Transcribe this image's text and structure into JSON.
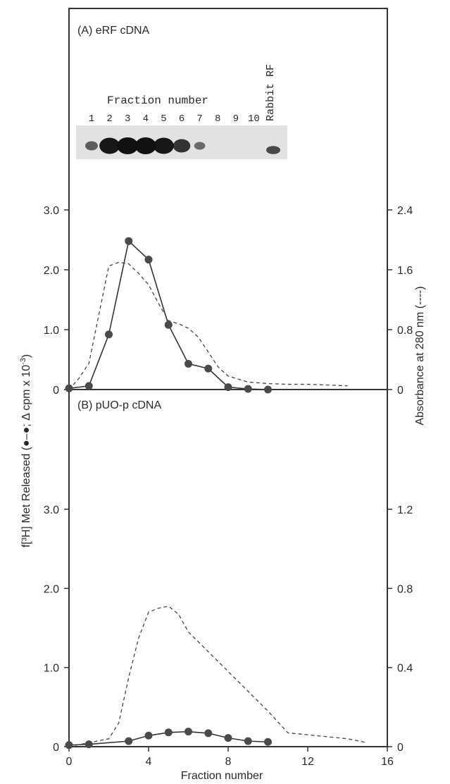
{
  "chart_data": [
    {
      "type": "line",
      "panel_label": "(A) eRF cDNA",
      "xlim": [
        0,
        16
      ],
      "ylim": [
        0,
        3.0
      ],
      "y2lim": [
        0,
        2.4
      ],
      "yticks": [
        "0",
        "1.0",
        "2.0",
        "3.0"
      ],
      "y2ticks": [
        "0",
        "0.8",
        "1.6",
        "2.4"
      ],
      "series": [
        {
          "axis": "left",
          "style": "solid-with-dots",
          "x": [
            0,
            1,
            2,
            3,
            4,
            5,
            6,
            7,
            8,
            9,
            10
          ],
          "values": [
            0.02,
            0.06,
            0.92,
            2.48,
            2.17,
            1.08,
            0.43,
            0.35,
            0.04,
            0.01,
            0.0
          ]
        },
        {
          "axis": "right",
          "style": "dashed",
          "x": [
            0,
            0.5,
            1,
            1.5,
            2,
            2.5,
            3,
            3.5,
            4,
            4.5,
            5,
            5.5,
            6,
            6.5,
            7,
            7.5,
            8,
            9,
            10,
            11,
            12,
            13,
            14
          ],
          "values": [
            0.0,
            0.15,
            0.35,
            1.0,
            1.65,
            1.7,
            1.68,
            1.55,
            1.4,
            1.15,
            0.92,
            0.88,
            0.82,
            0.7,
            0.5,
            0.3,
            0.18,
            0.1,
            0.08,
            0.07,
            0.07,
            0.06,
            0.05
          ]
        }
      ],
      "inset": {
        "title": "Fraction number",
        "lanes": [
          "1",
          "2",
          "3",
          "4",
          "5",
          "6",
          "7",
          "8",
          "9",
          "10"
        ],
        "extra_lane": "Rabbit RF",
        "band_intensity": [
          0.45,
          0.95,
          1.0,
          1.0,
          0.95,
          0.75,
          0.35,
          0.0,
          0.0,
          0.0
        ],
        "extra_intensity": 0.6
      }
    },
    {
      "type": "line",
      "panel_label": "(B) pUO-p cDNA",
      "xlabel": "Fraction number",
      "xticks": [
        "0",
        "4",
        "8",
        "12",
        "16"
      ],
      "xlim": [
        0,
        16
      ],
      "ylim": [
        0,
        3.0
      ],
      "y2lim": [
        0,
        1.2
      ],
      "yticks": [
        "0",
        "1.0",
        "2.0",
        "3.0"
      ],
      "y2ticks": [
        "0",
        "0.4",
        "0.8",
        "1.2"
      ],
      "series": [
        {
          "axis": "left",
          "style": "solid-with-dots",
          "x": [
            0,
            1,
            3,
            4,
            5,
            6,
            7,
            8,
            9,
            10
          ],
          "values": [
            0.02,
            0.03,
            0.07,
            0.14,
            0.18,
            0.19,
            0.17,
            0.11,
            0.07,
            0.06
          ]
        },
        {
          "axis": "right",
          "style": "dashed",
          "x": [
            0,
            1,
            2,
            2.5,
            3,
            3.5,
            4,
            4.5,
            5,
            5.5,
            6,
            7,
            8,
            9,
            10,
            11,
            12,
            13,
            14,
            15
          ],
          "values": [
            0.0,
            0.02,
            0.04,
            0.12,
            0.35,
            0.55,
            0.68,
            0.7,
            0.71,
            0.67,
            0.58,
            0.48,
            0.38,
            0.28,
            0.18,
            0.07,
            0.06,
            0.05,
            0.04,
            0.02
          ]
        }
      ]
    }
  ],
  "left_axis_label": "f[³H] Met Released (●–●; Δ cpm x 10",
  "left_axis_label_sup": "-3",
  "left_axis_label_end": ")",
  "right_axis_label": "Absorbance at 280 nm (----)"
}
